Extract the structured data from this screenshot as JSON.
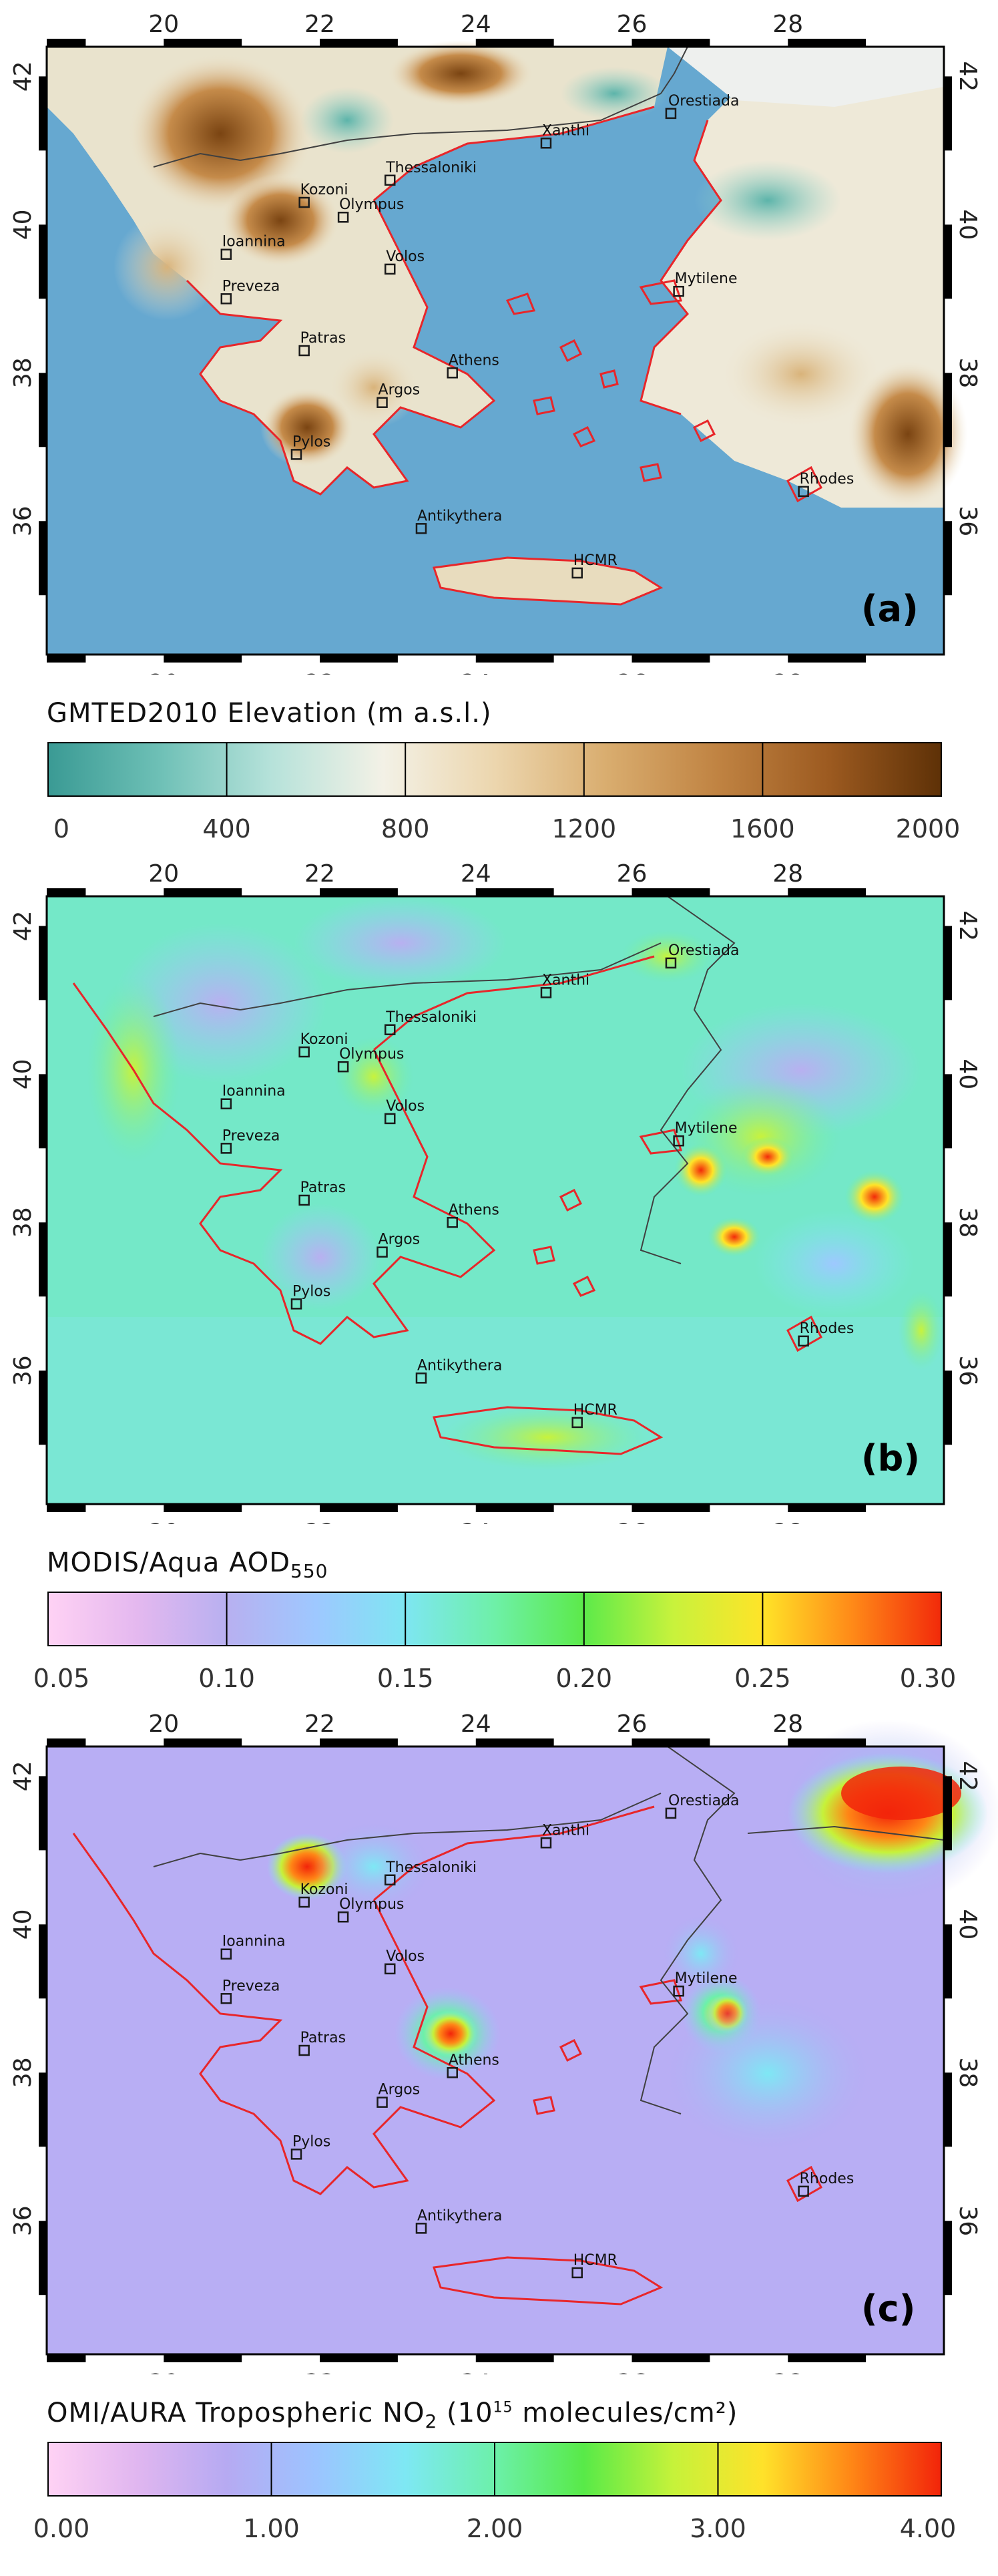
{
  "panels": [
    {
      "id": "a",
      "label": "(a)",
      "colorbar_title": "GMTED2010 Elevation (m a.s.l.)",
      "colorbar_title_main": "GMTED2010 Elevation (m a.s.l.)",
      "colorbar_title_sub": "",
      "colorbar_title_sup": "",
      "colorbar_title_tail": "",
      "colorbar_ticks": [
        "0",
        "400",
        "800",
        "1200",
        "1600",
        "2000"
      ],
      "colorbar_colors": [
        "#3a9a94",
        "#6ec0b6",
        "#b6e2da",
        "#f3f1e6",
        "#ecd6ae",
        "#d9ad6f",
        "#c08342",
        "#9c5a20",
        "#5e3107"
      ]
    },
    {
      "id": "b",
      "label": "(b)",
      "colorbar_title_main": "MODIS/Aqua AOD",
      "colorbar_title_sub": "550",
      "colorbar_title_sup": "",
      "colorbar_title_tail": "",
      "colorbar_ticks": [
        "0.05",
        "0.10",
        "0.15",
        "0.20",
        "0.25",
        "0.30"
      ],
      "colorbar_colors": [
        "#ffd2f4",
        "#e4b8ef",
        "#b8b0f0",
        "#9ec8ff",
        "#7ee6f2",
        "#6ef0a8",
        "#5cea4a",
        "#c8f23c",
        "#ffe428",
        "#ff8a18",
        "#f22a0a"
      ]
    },
    {
      "id": "c",
      "label": "(c)",
      "colorbar_title_main": "OMI/AURA Tropospheric NO",
      "colorbar_title_sub": "2",
      "colorbar_title_sup": "15",
      "colorbar_title_tail": " molecules/cm²)",
      "colorbar_ticks": [
        "0.00",
        "1.00",
        "2.00",
        "3.00",
        "4.00"
      ],
      "colorbar_colors": [
        "#ffd2f4",
        "#e0b6f0",
        "#b6aaf2",
        "#9cc4ff",
        "#7ee8f4",
        "#6cf0aa",
        "#58ea48",
        "#c6f23a",
        "#ffe22a",
        "#ff8616",
        "#f2240a"
      ]
    }
  ],
  "axes": {
    "lon_ticks": [
      "20",
      "22",
      "24",
      "26",
      "28"
    ],
    "lat_ticks": [
      "42",
      "40",
      "38",
      "36"
    ]
  },
  "cities": [
    {
      "name": "Orestiada",
      "lon": 26.5,
      "lat": 41.5
    },
    {
      "name": "Xanthi",
      "lon": 24.9,
      "lat": 41.1
    },
    {
      "name": "Thessaloniki",
      "lon": 22.9,
      "lat": 40.6
    },
    {
      "name": "Kozoni",
      "lon": 21.8,
      "lat": 40.3
    },
    {
      "name": "Olympus",
      "lon": 22.3,
      "lat": 40.1
    },
    {
      "name": "Ioannina",
      "lon": 20.8,
      "lat": 39.6
    },
    {
      "name": "Volos",
      "lon": 22.9,
      "lat": 39.4
    },
    {
      "name": "Mytilene",
      "lon": 26.6,
      "lat": 39.1
    },
    {
      "name": "Preveza",
      "lon": 20.8,
      "lat": 39.0
    },
    {
      "name": "Patras",
      "lon": 21.8,
      "lat": 38.3
    },
    {
      "name": "Athens",
      "lon": 23.7,
      "lat": 38.0
    },
    {
      "name": "Argos",
      "lon": 22.8,
      "lat": 37.6
    },
    {
      "name": "Pylos",
      "lon": 21.7,
      "lat": 36.9
    },
    {
      "name": "Rhodes",
      "lon": 28.2,
      "lat": 36.4
    },
    {
      "name": "Antikythera",
      "lon": 23.3,
      "lat": 35.9
    },
    {
      "name": "HCMR",
      "lon": 25.3,
      "lat": 35.3
    }
  ],
  "colors": {
    "sea_a": "#66a8d0",
    "coastline": "#e8262a",
    "border": "#404040",
    "marker": "#1a1a1a"
  }
}
